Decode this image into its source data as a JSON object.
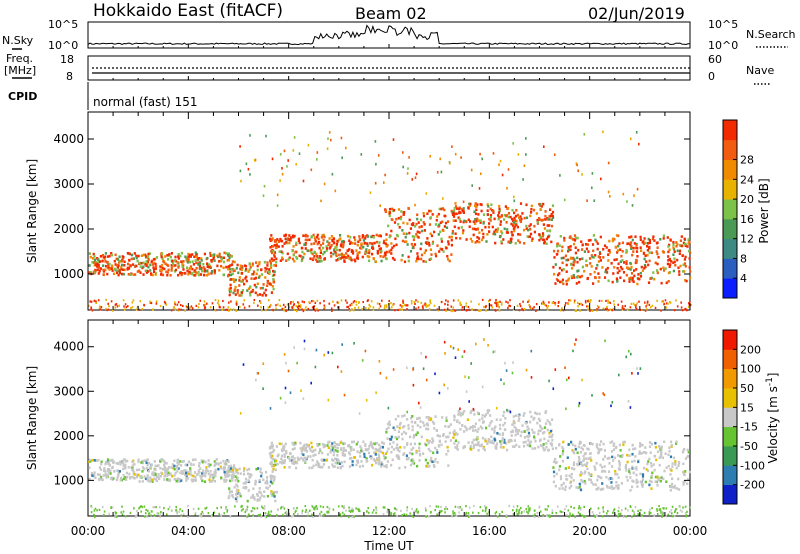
{
  "header": {
    "title": "Hokkaido East (fitACF)",
    "beam": "Beam 02",
    "date": "02/Jun/2019"
  },
  "strip": {
    "nsky_label": "N.Sky",
    "nsearch_label": "N.Search",
    "nsky_ticks": [
      "10^5",
      "10^0"
    ],
    "nsearch_ticks": [
      "10^5",
      "10^0"
    ],
    "freq_label_1": "Freq.",
    "freq_label_2": "[MHz]",
    "freq_ticks": [
      "18",
      "8"
    ],
    "nave_label": "Nave",
    "nave_ticks": [
      "60",
      "0"
    ],
    "cpid_label": "CPID",
    "cpid_text": "normal (fast) 151"
  },
  "chart_data": [
    {
      "type": "heatmap",
      "title": "",
      "ylabel": "Slant Range [km]",
      "xlabel": "",
      "y_ticks": [
        1000,
        2000,
        3000,
        4000
      ],
      "ylim": [
        200,
        4600
      ],
      "x_ticks": [
        "00:00",
        "04:00",
        "08:00",
        "12:00",
        "16:00",
        "20:00",
        "00:00"
      ],
      "xlim_hours": [
        0,
        24
      ],
      "colorbar": {
        "label": "Power [dB]",
        "ticks": [
          4,
          8,
          12,
          16,
          20,
          24,
          28
        ],
        "colors": [
          "#0a1eff",
          "#2a5fc0",
          "#3d8a84",
          "#4a9a56",
          "#7cc24a",
          "#e7b300",
          "#f08a00",
          "#f25c10",
          "#f22a00"
        ]
      },
      "bands": [
        {
          "hours": [
            0,
            5.8
          ],
          "km": [
            1000,
            1500
          ]
        },
        {
          "hours": [
            5.5,
            7.5
          ],
          "km": [
            550,
            1300
          ]
        },
        {
          "hours": [
            7.2,
            11.8
          ],
          "km": [
            1300,
            1900
          ]
        },
        {
          "hours": [
            11.8,
            14.5
          ],
          "km": [
            1300,
            2500
          ]
        },
        {
          "hours": [
            14.5,
            18.5
          ],
          "km": [
            1700,
            2600
          ]
        },
        {
          "hours": [
            18.5,
            24
          ],
          "km": [
            800,
            1900
          ]
        }
      ]
    },
    {
      "type": "heatmap",
      "title": "",
      "ylabel": "Slant Range [km]",
      "xlabel": "Time UT",
      "y_ticks": [
        1000,
        2000,
        3000,
        4000
      ],
      "ylim": [
        200,
        4600
      ],
      "x_ticks": [
        "00:00",
        "04:00",
        "08:00",
        "12:00",
        "16:00",
        "20:00",
        "00:00"
      ],
      "xlim_hours": [
        0,
        24
      ],
      "colorbar": {
        "label": "Velocity [m s^-1]",
        "ticks": [
          200,
          100,
          50,
          15,
          -15,
          -50,
          -100,
          -200
        ],
        "colors": [
          "#1020c8",
          "#2e7db0",
          "#3a9a55",
          "#66c432",
          "#c8c8c8",
          "#e7c000",
          "#f09a00",
          "#f06000",
          "#f01800"
        ]
      },
      "bands": [
        {
          "hours": [
            0,
            5.8
          ],
          "km": [
            1000,
            1500
          ]
        },
        {
          "hours": [
            5.5,
            7.5
          ],
          "km": [
            550,
            1300
          ]
        },
        {
          "hours": [
            7.2,
            11.8
          ],
          "km": [
            1300,
            1900
          ]
        },
        {
          "hours": [
            11.8,
            14.5
          ],
          "km": [
            1300,
            2500
          ]
        },
        {
          "hours": [
            14.5,
            18.5
          ],
          "km": [
            1700,
            2600
          ]
        },
        {
          "hours": [
            18.5,
            24
          ],
          "km": [
            800,
            1900
          ]
        }
      ]
    }
  ]
}
